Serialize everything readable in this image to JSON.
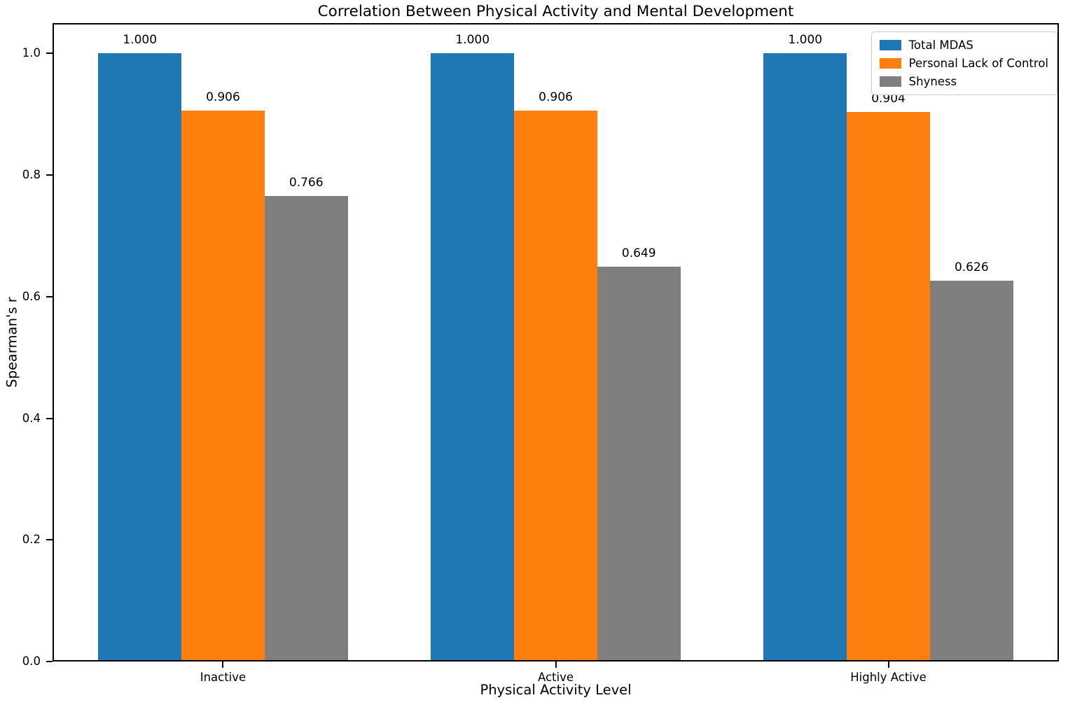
{
  "chart_data": {
    "type": "bar",
    "title": "Correlation Between Physical Activity and Mental Development",
    "xlabel": "Physical Activity Level",
    "ylabel": "Spearman's r",
    "categories": [
      "Inactive",
      "Active",
      "Highly Active"
    ],
    "series": [
      {
        "name": "Total MDAS",
        "color": "#1f77b4",
        "values": [
          1.0,
          1.0,
          1.0
        ]
      },
      {
        "name": "Personal Lack of Control",
        "color": "#ff7f0e",
        "values": [
          0.906,
          0.906,
          0.904
        ]
      },
      {
        "name": "Shyness",
        "color": "#7f7f7f",
        "values": [
          0.766,
          0.649,
          0.626
        ]
      }
    ],
    "value_label_decimals": 3,
    "bar_width": 0.25,
    "ylim": [
      0,
      1.05
    ],
    "yticks": [
      0.0,
      0.2,
      0.4,
      0.6,
      0.8,
      1.0
    ],
    "ytick_labels": [
      "0.0",
      "0.2",
      "0.4",
      "0.6",
      "0.8",
      "1.0"
    ],
    "legend": {
      "position": "upper right",
      "entries": [
        "Total MDAS",
        "Personal Lack of Control",
        "Shyness"
      ]
    },
    "grid": false,
    "background_color": "#ffffff",
    "spine_color": "#000000"
  }
}
